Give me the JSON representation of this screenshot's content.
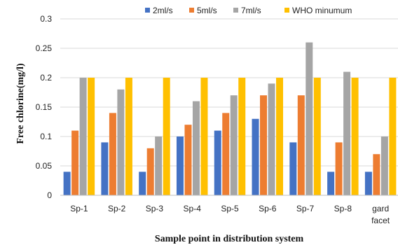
{
  "chart_data": {
    "type": "bar",
    "title": "",
    "xlabel": "Sample point in distribution system",
    "ylabel": "Free chlorine(mg/l)",
    "ylim": [
      0,
      0.3
    ],
    "yticks": [
      "0",
      "0.05",
      "0.1",
      "0.15",
      "0.2",
      "0.25",
      "0.3"
    ],
    "grid": true,
    "legend_position": "top",
    "categories": [
      "Sp-1",
      "Sp-2",
      "Sp-3",
      "Sp-4",
      "Sp-5",
      "Sp-6",
      "Sp-7",
      "Sp-8",
      "gard facet"
    ],
    "series": [
      {
        "name": "2ml/s",
        "color": "#4472c4",
        "values": [
          0.04,
          0.09,
          0.04,
          0.1,
          0.11,
          0.13,
          0.09,
          0.04,
          0.04
        ]
      },
      {
        "name": "5ml/s",
        "color": "#ed7d31",
        "values": [
          0.11,
          0.14,
          0.08,
          0.12,
          0.14,
          0.17,
          0.17,
          0.09,
          0.07
        ]
      },
      {
        "name": "7ml/s",
        "color": "#a5a5a5",
        "values": [
          0.2,
          0.18,
          0.1,
          0.16,
          0.17,
          0.19,
          0.26,
          0.21,
          0.1
        ]
      },
      {
        "name": "WHO minumum",
        "color": "#ffc000",
        "values": [
          0.2,
          0.2,
          0.2,
          0.2,
          0.2,
          0.2,
          0.2,
          0.2,
          0.2
        ]
      }
    ]
  }
}
